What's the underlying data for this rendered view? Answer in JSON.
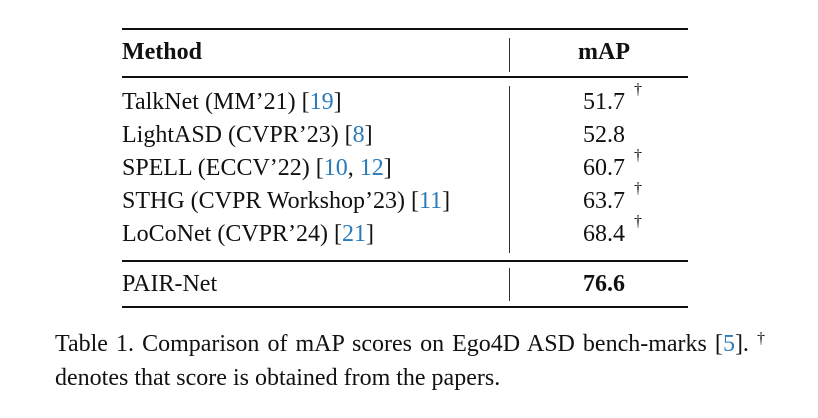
{
  "table": {
    "header": {
      "method": "Method",
      "score": "mAP"
    },
    "rows": [
      {
        "method": "TalkNet (MM’21) [",
        "cites": [
          "19"
        ],
        "suffix": "]",
        "score": "51.7",
        "dagger": "†"
      },
      {
        "method": "LightASD (CVPR’23) [",
        "cites": [
          "8"
        ],
        "suffix": "]",
        "score": "52.8",
        "dagger": ""
      },
      {
        "method": "SPELL (ECCV’22) [",
        "cites": [
          "10",
          "12"
        ],
        "suffix": "]",
        "score": "60.7",
        "dagger": "†"
      },
      {
        "method": "STHG (CVPR Workshop’23) [",
        "cites": [
          "11"
        ],
        "suffix": "]",
        "score": "63.7",
        "dagger": "†"
      },
      {
        "method": "LoCoNet (CVPR’24) [",
        "cites": [
          "21"
        ],
        "suffix": "]",
        "score": "68.4",
        "dagger": "†"
      }
    ],
    "final_row": {
      "method": "PAIR-Net",
      "score": "76.6"
    }
  },
  "caption": {
    "part1": "Table 1.  Comparison of mAP scores on Ego4D ASD bench-marks [",
    "cite": "5",
    "part2": "]. ",
    "dagger": "†",
    "part3": " denotes that score is obtained from the papers."
  },
  "colors": {
    "citation": "#2a7ab8",
    "text": "#111111"
  }
}
